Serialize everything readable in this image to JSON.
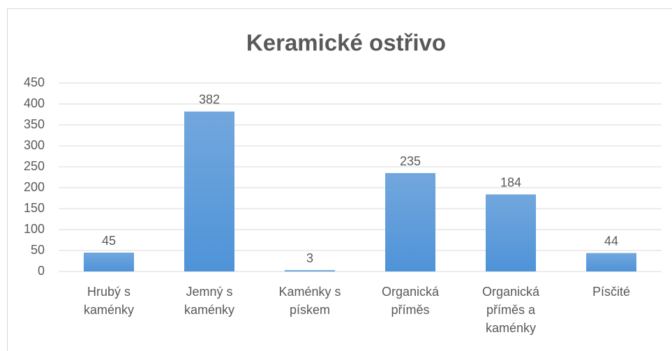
{
  "chart_data": {
    "type": "bar",
    "title": "Keramické ostřivo",
    "categories": [
      "Hrubý s kaménky",
      "Jemný s kaménky",
      "Kaménky s pískem",
      "Organická příměs",
      "Organická příměs a kaménky",
      "Písčité"
    ],
    "values": [
      45,
      382,
      3,
      235,
      184,
      44
    ],
    "color": "#5b9bd5",
    "ylim": [
      0,
      450
    ],
    "yticks": [
      0,
      50,
      100,
      150,
      200,
      250,
      300,
      350,
      400,
      450
    ],
    "grid": true
  }
}
